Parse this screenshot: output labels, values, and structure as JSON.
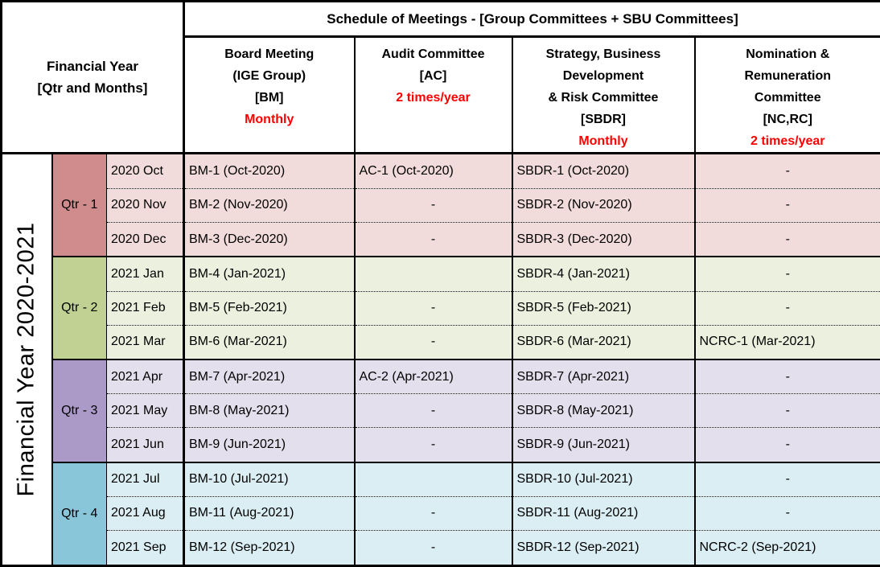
{
  "header": {
    "corner_line1": "Financial Year",
    "corner_line2": "[Qtr and Months]",
    "schedule_title": "Schedule of Meetings - [Group Committees + SBU Committees]",
    "committees": [
      {
        "lines": [
          "Board Meeting",
          "(IGE Group)",
          "[BM]"
        ],
        "frequency": "Monthly"
      },
      {
        "lines": [
          "Audit Committee",
          "[AC]"
        ],
        "frequency": "2 times/year"
      },
      {
        "lines": [
          "Strategy, Business",
          "Development",
          "& Risk Committee",
          "[SBDR]"
        ],
        "frequency": "Monthly"
      },
      {
        "lines": [
          "Nomination &",
          "Remuneration",
          "Committee",
          "[NC,RC]"
        ],
        "frequency": "2 times/year"
      }
    ]
  },
  "side_label": "Financial Year 2020-2021",
  "quarters": [
    {
      "label": "Qtr - 1",
      "dark": "#D08C8C",
      "light": "#F2DCDB",
      "rows": [
        {
          "month": "2020 Oct",
          "bm": "BM-1 (Oct-2020)",
          "ac": "AC-1 (Oct-2020)",
          "sbdr": "SBDR-1 (Oct-2020)",
          "ncrc": "-"
        },
        {
          "month": "2020 Nov",
          "bm": "BM-2 (Nov-2020)",
          "ac": "-",
          "sbdr": "SBDR-2 (Nov-2020)",
          "ncrc": "-"
        },
        {
          "month": "2020 Dec",
          "bm": "BM-3 (Dec-2020)",
          "ac": "-",
          "sbdr": "SBDR-3 (Dec-2020)",
          "ncrc": "-"
        }
      ]
    },
    {
      "label": "Qtr - 2",
      "dark": "#C0D193",
      "light": "#EBF1DE",
      "rows": [
        {
          "month": "2021 Jan",
          "bm": "BM-4 (Jan-2021)",
          "ac": "",
          "sbdr": "SBDR-4 (Jan-2021)",
          "ncrc": "-"
        },
        {
          "month": "2021 Feb",
          "bm": "BM-5 (Feb-2021)",
          "ac": "-",
          "sbdr": "SBDR-5 (Feb-2021)",
          "ncrc": "-"
        },
        {
          "month": "2021 Mar",
          "bm": "BM-6 (Mar-2021)",
          "ac": "-",
          "sbdr": "SBDR-6 (Mar-2021)",
          "ncrc": "NCRC-1 (Mar-2021)"
        }
      ]
    },
    {
      "label": "Qtr - 3",
      "dark": "#AB9AC7",
      "light": "#E4DFEC",
      "rows": [
        {
          "month": "2021 Apr",
          "bm": "BM-7 (Apr-2021)",
          "ac": "AC-2 (Apr-2021)",
          "sbdr": "SBDR-7 (Apr-2021)",
          "ncrc": "-"
        },
        {
          "month": "2021 May",
          "bm": "BM-8 (May-2021)",
          "ac": "-",
          "sbdr": "SBDR-8 (May-2021)",
          "ncrc": "-"
        },
        {
          "month": "2021 Jun",
          "bm": "BM-9 (Jun-2021)",
          "ac": "-",
          "sbdr": "SBDR-9 (Jun-2021)",
          "ncrc": "-"
        }
      ]
    },
    {
      "label": "Qtr - 4",
      "dark": "#8AC6DA",
      "light": "#DAEEF3",
      "rows": [
        {
          "month": "2021 Jul",
          "bm": "BM-10 (Jul-2021)",
          "ac": "",
          "sbdr": "SBDR-10 (Jul-2021)",
          "ncrc": "-"
        },
        {
          "month": "2021 Aug",
          "bm": "BM-11 (Aug-2021)",
          "ac": "-",
          "sbdr": "SBDR-11 (Aug-2021)",
          "ncrc": "-"
        },
        {
          "month": "2021 Sep",
          "bm": "BM-12 (Sep-2021)",
          "ac": "-",
          "sbdr": "SBDR-12 (Sep-2021)",
          "ncrc": "NCRC-2 (Sep-2021)"
        }
      ]
    }
  ],
  "colors": {
    "text": "#000000",
    "border": "#000000",
    "background": "#FFFFFF",
    "frequency_red": "#FF0000"
  }
}
